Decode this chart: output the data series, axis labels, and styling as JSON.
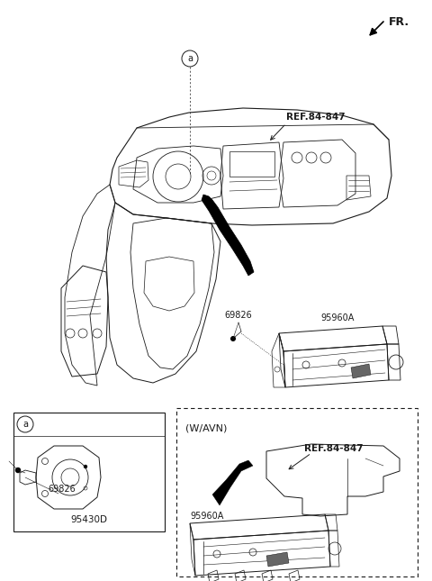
{
  "bg_color": "#ffffff",
  "line_color": "#1a1a1a",
  "fr_label": "FR.",
  "ref_label_1": "REF.84-847",
  "ref_label_2": "REF.84-847",
  "label_a": "a",
  "label_69826_1": "69826",
  "label_95960A_1": "95960A",
  "label_69826_2": "69826",
  "label_95430D": "95430D",
  "label_wavN": "(W/AVN)",
  "label_95960A_2": "95960A",
  "fig_width": 4.8,
  "fig_height": 6.45,
  "dpi": 100
}
